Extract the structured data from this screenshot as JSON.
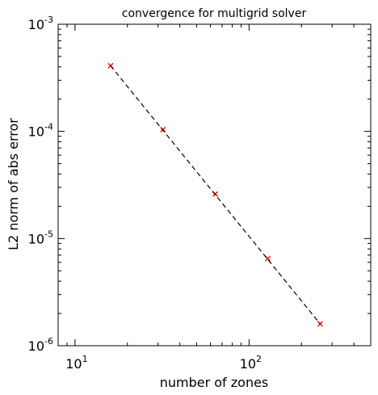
{
  "chart_data": {
    "type": "scatter",
    "title": "convergence for multigrid solver",
    "xlabel": "number of zones",
    "ylabel": "L2 norm of abs error",
    "xscale": "log",
    "yscale": "log",
    "xlim": [
      8,
      500
    ],
    "ylim": [
      1e-06,
      0.001
    ],
    "grid": false,
    "x_ticks": [
      {
        "value": 10,
        "base": "10",
        "exp": "1"
      },
      {
        "value": 100,
        "base": "10",
        "exp": "2"
      }
    ],
    "y_ticks": [
      {
        "value": 1e-06,
        "base": "10",
        "exp": "-6"
      },
      {
        "value": 1e-05,
        "base": "10",
        "exp": "-5"
      },
      {
        "value": 0.0001,
        "base": "10",
        "exp": "-4"
      },
      {
        "value": 0.001,
        "base": "10",
        "exp": "-3"
      }
    ],
    "series": [
      {
        "style": "red-x-markers",
        "color": "#ff0000",
        "x": [
          16,
          32,
          64,
          128,
          256
        ],
        "y": [
          0.00041,
          0.000104,
          2.6e-05,
          6.5e-06,
          1.6e-06
        ]
      },
      {
        "style": "dashed-line",
        "color": "#000000",
        "x": [
          16,
          256
        ],
        "y": [
          0.00041,
          1.6e-06
        ]
      }
    ]
  }
}
